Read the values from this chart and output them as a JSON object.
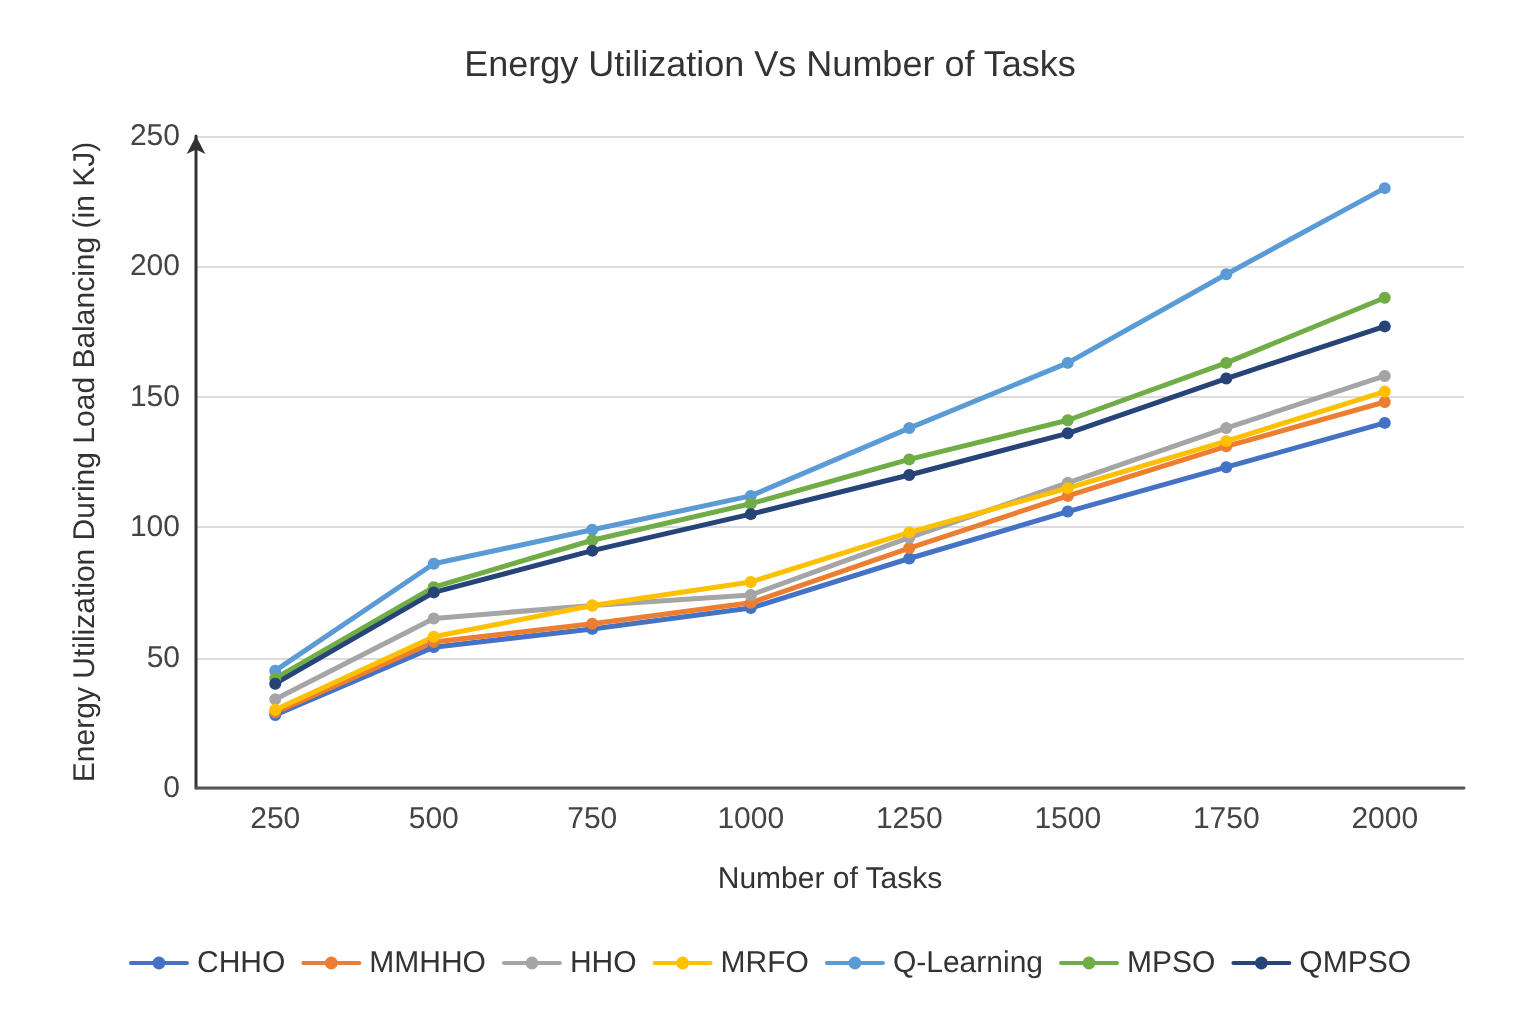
{
  "chart_data": {
    "type": "line",
    "title": "Energy Utilization Vs Number of Tasks",
    "xlabel": "Number of Tasks",
    "ylabel": "Energy Utilization During Load Balancing (in KJ)",
    "categories": [
      "250",
      "500",
      "750",
      "1000",
      "1250",
      "1500",
      "1750",
      "2000"
    ],
    "ylim": [
      0,
      250
    ],
    "yticks": [
      0,
      50,
      100,
      150,
      200,
      250
    ],
    "grid": "y",
    "legend": "bottom",
    "marker": "circle",
    "line_style": "solid",
    "series": [
      {
        "name": "CHHO",
        "color": "#4472c4",
        "values": [
          28,
          54,
          61,
          69,
          88,
          106,
          123,
          140
        ]
      },
      {
        "name": "MMHHO",
        "color": "#ed7d31",
        "values": [
          29,
          56,
          63,
          71,
          92,
          112,
          131,
          148
        ]
      },
      {
        "name": "HHO",
        "color": "#a5a5a5",
        "values": [
          34,
          65,
          70,
          74,
          96,
          117,
          138,
          158
        ]
      },
      {
        "name": "MRFO",
        "color": "#ffc000",
        "values": [
          30,
          58,
          70,
          79,
          98,
          115,
          133,
          152
        ]
      },
      {
        "name": "Q-Learning",
        "color": "#5b9bd5",
        "values": [
          45,
          86,
          99,
          112,
          138,
          163,
          197,
          230
        ]
      },
      {
        "name": "MPSO",
        "color": "#70ad47",
        "values": [
          42,
          77,
          95,
          109,
          126,
          141,
          163,
          188
        ]
      },
      {
        "name": "QMPSO",
        "color": "#264478",
        "values": [
          40,
          75,
          91,
          105,
          120,
          136,
          157,
          177
        ]
      }
    ]
  }
}
